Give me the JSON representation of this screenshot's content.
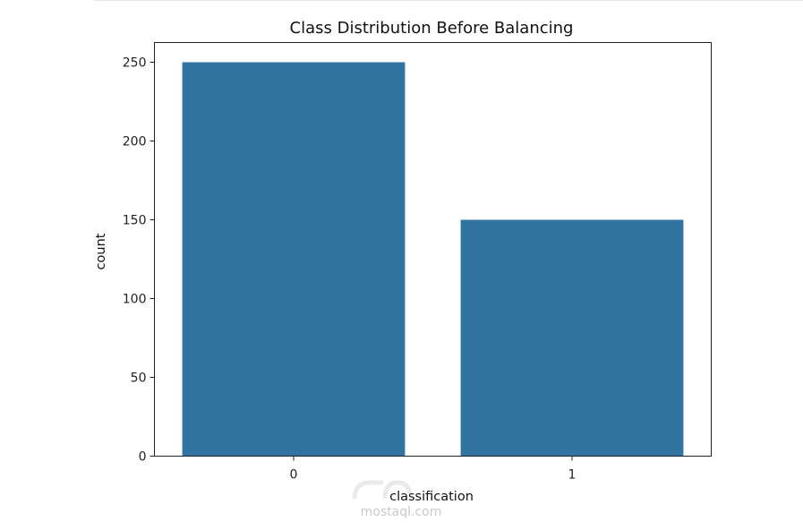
{
  "chart_data": {
    "type": "bar",
    "title": "Class Distribution Before Balancing",
    "xlabel": "classification",
    "ylabel": "count",
    "categories": [
      "0",
      "1"
    ],
    "values": [
      250,
      150
    ],
    "ylim": [
      0,
      262.5
    ],
    "yticks": [
      0,
      50,
      100,
      150,
      200,
      250
    ],
    "grid": false,
    "bar_color": "#3274a1"
  },
  "watermark": {
    "text": "mostaql.com"
  }
}
